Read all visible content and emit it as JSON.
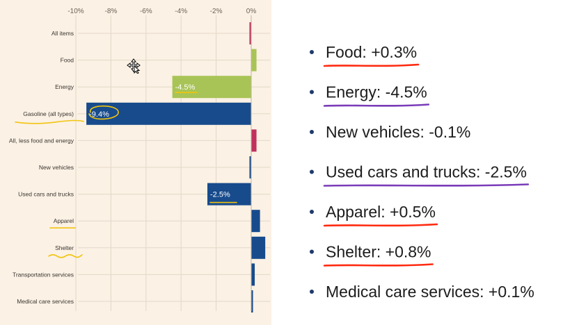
{
  "chart_data": {
    "type": "bar",
    "orientation": "horizontal",
    "categories": [
      "All items",
      "Food",
      "Energy",
      "Gasoline (all types)",
      "All, less food and energy",
      "New vehicles",
      "Used cars and trucks",
      "Apparel",
      "Shelter",
      "Transportation services",
      "Medical care services"
    ],
    "values": [
      -0.1,
      0.3,
      -4.5,
      -9.4,
      0.3,
      -0.1,
      -2.5,
      0.5,
      0.8,
      0.2,
      0.1
    ],
    "bar_colors": [
      "#c0315e",
      "#a8c456",
      "#a8c456",
      "#174b8c",
      "#c0315e",
      "#174b8c",
      "#174b8c",
      "#174b8c",
      "#174b8c",
      "#174b8c",
      "#174b8c"
    ],
    "bar_labels": [
      "",
      "",
      "-4.5%",
      "-9.4%",
      "",
      "",
      "-2.5%",
      "",
      "",
      "",
      ""
    ],
    "xticks": [
      -10,
      -8,
      -6,
      -4,
      -2,
      0
    ],
    "xtick_labels": [
      "-10%",
      "-8%",
      "-6%",
      "-4%",
      "-2%",
      "0%"
    ],
    "xlim": [
      -10,
      1
    ],
    "grid": true,
    "axis_position": "top"
  },
  "bullets": [
    {
      "text": "Food: +0.3%",
      "underline_color": "#ff2a10"
    },
    {
      "text": "Energy: -4.5%",
      "underline_color": "#7a3bb8"
    },
    {
      "text": "New vehicles: -0.1%",
      "underline_color": ""
    },
    {
      "text": "Used cars and trucks: -2.5%",
      "underline_color": "#7a3bb8"
    },
    {
      "text": "Apparel: +0.5%",
      "underline_color": "#ff2a10"
    },
    {
      "text": "Shelter: +0.8%",
      "underline_color": "#ff2a10"
    },
    {
      "text": "Medical care services: +0.1%",
      "underline_color": ""
    }
  ],
  "highlight_color": "#f2c40f",
  "text_color": "#1c1c1c"
}
